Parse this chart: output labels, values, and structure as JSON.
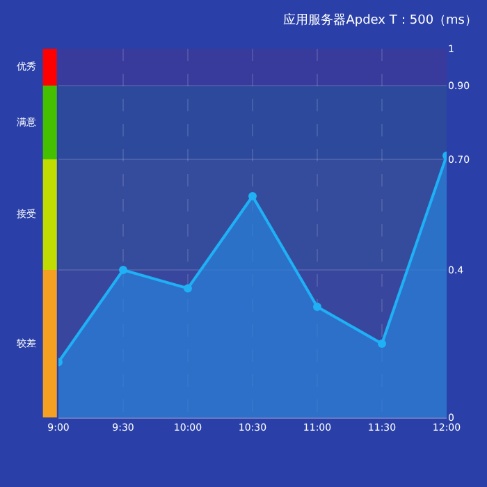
{
  "chart_data": {
    "type": "area",
    "title": "应用服务器Apdex T：500（ms）",
    "x": [
      9,
      9.5,
      10,
      10.5,
      11,
      11.5,
      12
    ],
    "series": [
      {
        "color": "#1fb0f5",
        "values": [
          0.15,
          0.4,
          0.35,
          0.6,
          0.3,
          0.2,
          0.71
        ]
      }
    ],
    "xlim": [
      9,
      12
    ],
    "xticks": [
      {
        "value": 9,
        "label": "9:00"
      },
      {
        "value": 9.5,
        "label": "9:30"
      },
      {
        "value": 10,
        "label": "10:00"
      },
      {
        "value": 10.5,
        "label": "10:30"
      },
      {
        "value": 11,
        "label": "11:00"
      },
      {
        "value": 11.5,
        "label": "11:30"
      },
      {
        "value": 12,
        "label": "12:00"
      }
    ],
    "ylim": [
      0,
      1
    ],
    "yticks": [
      0,
      {
        "value": 0.4,
        "label": "0.4"
      },
      {
        "value": 0.7,
        "label": "0.70"
      },
      {
        "value": 0.9,
        "label": "0.90"
      },
      1
    ],
    "bands": [
      {
        "axis": "y",
        "from": 0.9,
        "to": 1,
        "label": "优秀",
        "color": "#ff0000"
      },
      {
        "axis": "y",
        "from": 0.7,
        "to": 0.9,
        "label": "满意",
        "color": "#44c000"
      },
      {
        "axis": "y",
        "from": 0.4,
        "to": 0.7,
        "label": "接受",
        "color": "#c0dc00"
      },
      {
        "axis": "y",
        "from": 0,
        "to": 0.4,
        "label": "较差",
        "color": "#f5a020"
      }
    ],
    "grid": true,
    "marker": "circle",
    "line_style": "solid"
  }
}
